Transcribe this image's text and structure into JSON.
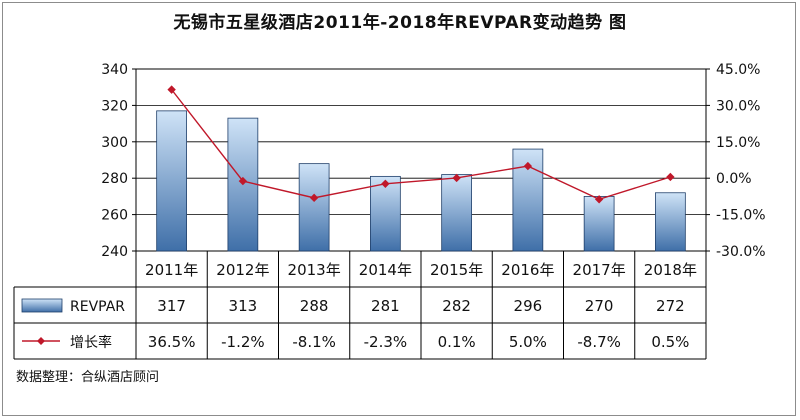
{
  "title": "无锡市五星级酒店2011年-2018年REVPAR变动趋势 图",
  "source": "数据整理：合纵酒店顾问",
  "chart_data": {
    "type": "bar",
    "categories": [
      "2011年",
      "2012年",
      "2013年",
      "2014年",
      "2015年",
      "2016年",
      "2017年",
      "2018年"
    ],
    "series": [
      {
        "name": "REVPAR",
        "type": "bar",
        "axis": "left",
        "values": [
          317,
          313,
          288,
          281,
          282,
          296,
          270,
          272
        ],
        "labels": [
          "317",
          "313",
          "288",
          "281",
          "282",
          "296",
          "270",
          "272"
        ],
        "color_top": "#cfe3f7",
        "color_bottom": "#3f6fa8"
      },
      {
        "name": "增长率",
        "type": "line",
        "axis": "right",
        "values": [
          36.5,
          -1.2,
          -8.1,
          -2.3,
          0.1,
          5.0,
          -8.7,
          0.5
        ],
        "labels": [
          "36.5%",
          "-1.2%",
          "-8.1%",
          "-2.3%",
          "0.1%",
          "5.0%",
          "-8.7%",
          "0.5%"
        ],
        "color": "#c0182a"
      }
    ],
    "left_axis": {
      "ylim": [
        240,
        340
      ],
      "ticks": [
        "240",
        "260",
        "280",
        "300",
        "320",
        "340"
      ]
    },
    "right_axis": {
      "ylim": [
        -30,
        45
      ],
      "ticks": [
        "-30.0%",
        "-15.0%",
        "0.0%",
        "15.0%",
        "30.0%",
        "45.0%"
      ]
    },
    "grid": true,
    "legend": "data-table"
  }
}
